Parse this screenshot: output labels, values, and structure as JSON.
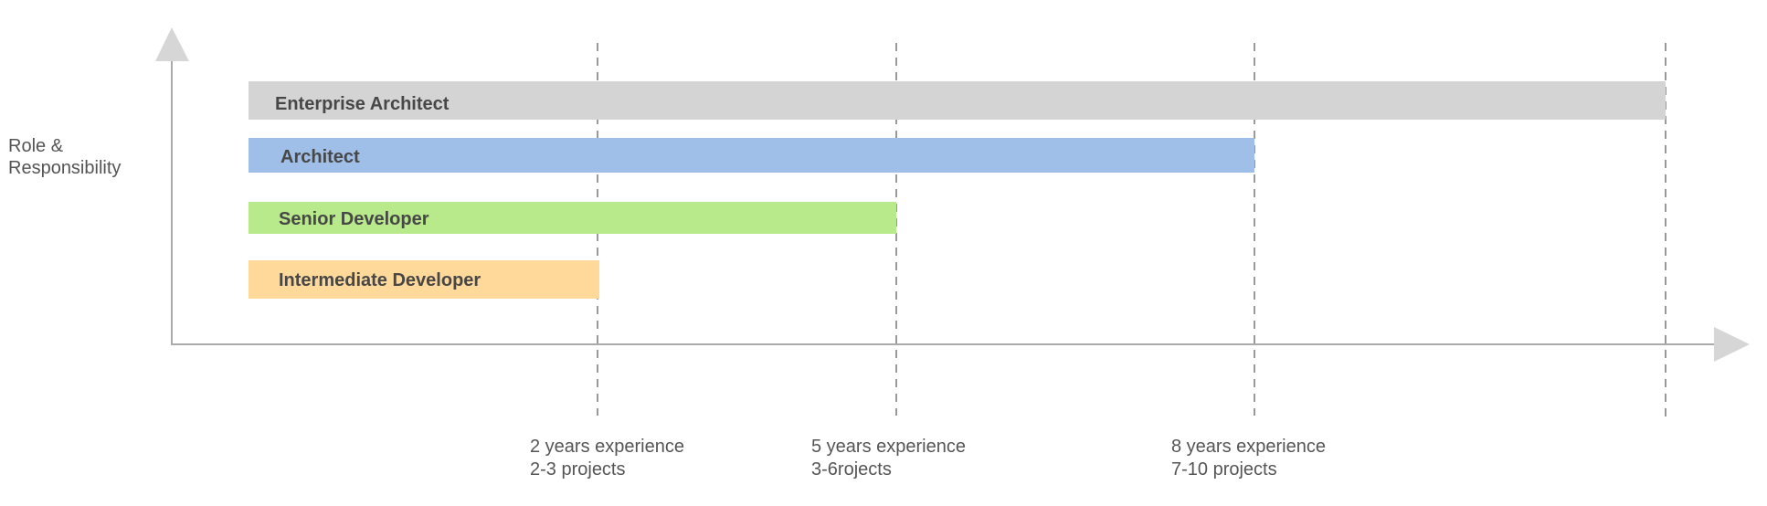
{
  "y_axis_label": [
    "Role &",
    "Responsibility"
  ],
  "roles": [
    {
      "label": "Enterprise Architect",
      "color": "#d4d4d4"
    },
    {
      "label": "Architect",
      "color": "#a0bfe8"
    },
    {
      "label": "Senior Developer",
      "color": "#b8e98a"
    },
    {
      "label": "Intermediate Developer",
      "color": "#ffd99a"
    }
  ],
  "milestones": [
    {
      "line1": "2 years experience",
      "line2": "2-3 projects"
    },
    {
      "line1": "5 years experience",
      "line2": "3-6rojects"
    },
    {
      "line1": "8 years experience",
      "line2": "7-10 projects"
    },
    {
      "line1": "",
      "line2": ""
    }
  ],
  "colors": {
    "axis": "#aaaaaa",
    "arrowhead": "#d6d6d6",
    "guide": "#999999",
    "label_text": "#474747",
    "tick_text": "#555555"
  }
}
